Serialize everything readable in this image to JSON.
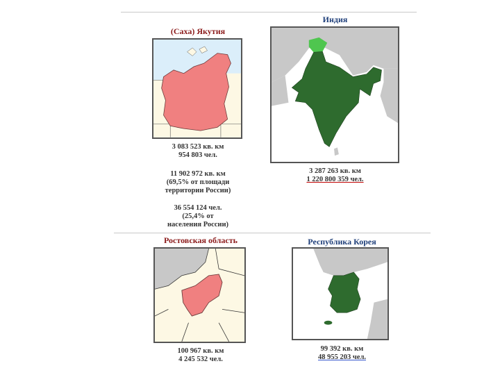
{
  "panels": [
    {
      "id": "yakutia",
      "title": "(Саха) Якутия",
      "stats": [
        "3 083 523 кв. км",
        "954 803 чел."
      ],
      "extra1": [
        "11 902 972 кв. км",
        "(69,5% от площади",
        "территории России)"
      ],
      "extra2": [
        "36 554 124 чел.",
        "(25,4% от",
        "населения России)"
      ]
    },
    {
      "id": "india",
      "title": "Индия",
      "stats": [
        "3 287 263 кв. км",
        "1 220 800 359 чел."
      ]
    },
    {
      "id": "rostov",
      "title": "Ростовская область",
      "stats": [
        "100 967 кв. км",
        "4 245 532 чел."
      ]
    },
    {
      "id": "korea",
      "title": "Республика Корея",
      "stats": [
        "99 392 кв. км",
        "48 955 203 чел."
      ]
    }
  ],
  "colors": {
    "highlight_red": "#f08080",
    "highlight_green": "#2e6b2e",
    "water": "#dbeefa",
    "land_gray": "#c8c8c8",
    "land_cream": "#fdf8e4"
  }
}
